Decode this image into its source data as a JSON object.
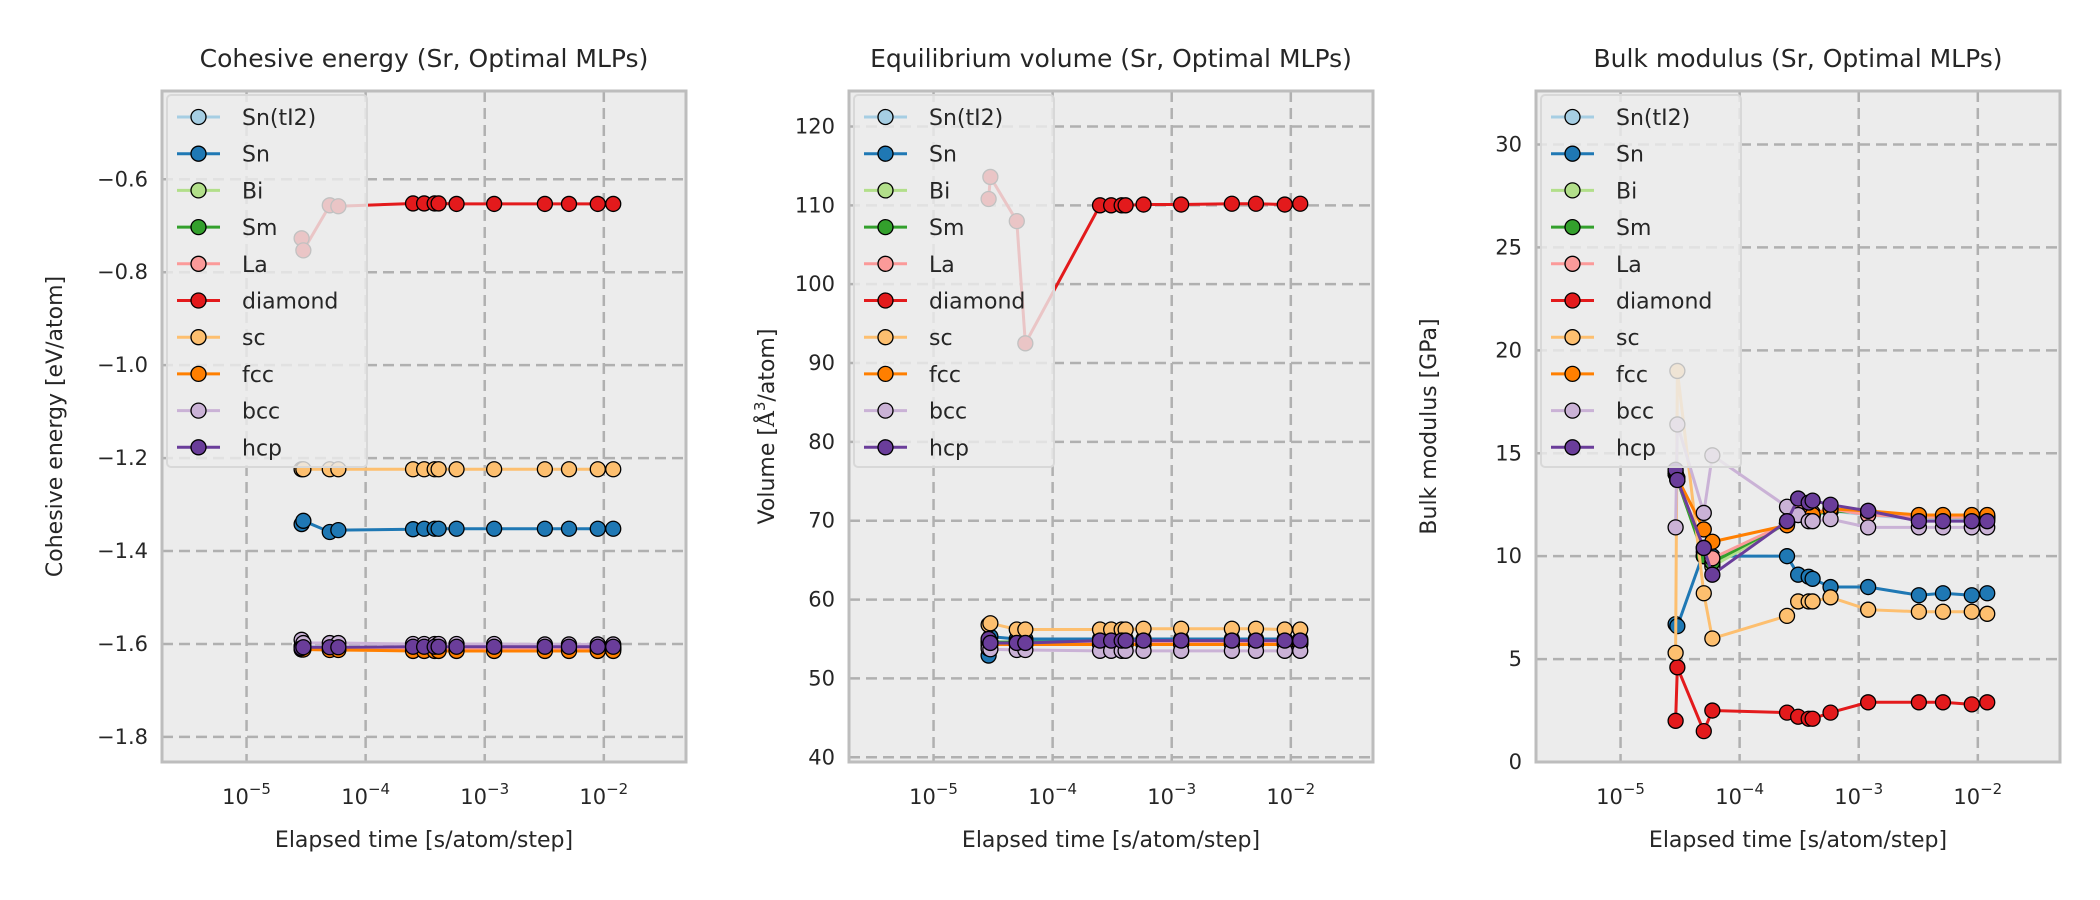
{
  "figure": {
    "legend_location": "upper-left",
    "series_styles": [
      {
        "name": "Sn(tI2)",
        "color": "#a6cee3"
      },
      {
        "name": "Sn",
        "color": "#1f78b4"
      },
      {
        "name": "Bi",
        "color": "#b2df8a"
      },
      {
        "name": "Sm",
        "color": "#33a02c"
      },
      {
        "name": "La",
        "color": "#fb9a99"
      },
      {
        "name": "diamond",
        "color": "#e31a1c"
      },
      {
        "name": "sc",
        "color": "#fdbf6f"
      },
      {
        "name": "fcc",
        "color": "#ff7f00"
      },
      {
        "name": "bcc",
        "color": "#cab2d6"
      },
      {
        "name": "hcp",
        "color": "#6a3d9a"
      }
    ],
    "plot_background": "#ececec",
    "grid_color": "#b0b0b0"
  },
  "chart_data": [
    {
      "type": "line",
      "title": "Cohesive energy (Sr, Optimal MLPs)",
      "xlabel": "Elapsed time [s/atom/step]",
      "ylabel": "Cohesive energy [eV/atom]",
      "xscale": "log",
      "xlim": [
        1.95e-06,
        0.049
      ],
      "ylim": [
        -1.854,
        -0.41
      ],
      "xticks": [
        {
          "value": 1e-05,
          "base": "10",
          "exp": "−5"
        },
        {
          "value": 0.0001,
          "base": "10",
          "exp": "−4"
        },
        {
          "value": 0.001,
          "base": "10",
          "exp": "−3"
        },
        {
          "value": 0.01,
          "base": "10",
          "exp": "−2"
        }
      ],
      "yticks": [
        {
          "value": -1.8,
          "label": "−1.8"
        },
        {
          "value": -1.6,
          "label": "−1.6"
        },
        {
          "value": -1.4,
          "label": "−1.4"
        },
        {
          "value": -1.2,
          "label": "−1.2"
        },
        {
          "value": -1.0,
          "label": "−1.0"
        },
        {
          "value": -0.8,
          "label": "−0.8"
        },
        {
          "value": -0.6,
          "label": "−0.6"
        }
      ],
      "grid": true,
      "legend": "upper-left",
      "x": [
        2.9e-05,
        3e-05,
        5e-05,
        5.9e-05,
        0.00025,
        0.00031,
        0.00038,
        0.00041,
        0.00058,
        0.0012,
        0.0032,
        0.0051,
        0.0089,
        0.012
      ],
      "series": [
        {
          "name": "Sn(tI2)",
          "values": [
            -1.605,
            -1.606,
            -1.607,
            -1.607,
            -1.608,
            -1.608,
            -1.608,
            -1.608,
            -1.608,
            -1.608,
            -1.608,
            -1.608,
            -1.608,
            -1.608
          ]
        },
        {
          "name": "Sn",
          "values": [
            -1.342,
            -1.335,
            -1.359,
            -1.355,
            -1.353,
            -1.352,
            -1.352,
            -1.352,
            -1.352,
            -1.352,
            -1.352,
            -1.352,
            -1.352,
            -1.352
          ]
        },
        {
          "name": "Bi",
          "values": [
            -1.607,
            -1.608,
            -1.609,
            -1.609,
            -1.61,
            -1.61,
            -1.61,
            -1.61,
            -1.61,
            -1.61,
            -1.61,
            -1.61,
            -1.61,
            -1.61
          ]
        },
        {
          "name": "Sm",
          "values": [
            -1.607,
            -1.608,
            -1.609,
            -1.609,
            -1.61,
            -1.61,
            -1.61,
            -1.61,
            -1.61,
            -1.61,
            -1.61,
            -1.61,
            -1.61,
            -1.61
          ]
        },
        {
          "name": "La",
          "values": [
            -1.606,
            -1.607,
            -1.608,
            -1.608,
            -1.609,
            -1.609,
            -1.609,
            -1.609,
            -1.609,
            -1.609,
            -1.609,
            -1.609,
            -1.609,
            -1.609
          ]
        },
        {
          "name": "diamond",
          "values": [
            -0.727,
            -0.753,
            -0.656,
            -0.658,
            -0.652,
            -0.652,
            -0.652,
            -0.652,
            -0.653,
            -0.653,
            -0.653,
            -0.653,
            -0.653,
            -0.653
          ]
        },
        {
          "name": "sc",
          "values": [
            -1.224,
            -1.224,
            -1.224,
            -1.224,
            -1.224,
            -1.224,
            -1.224,
            -1.224,
            -1.224,
            -1.224,
            -1.224,
            -1.224,
            -1.224,
            -1.224
          ]
        },
        {
          "name": "fcc",
          "values": [
            -1.612,
            -1.612,
            -1.613,
            -1.613,
            -1.615,
            -1.615,
            -1.615,
            -1.615,
            -1.615,
            -1.615,
            -1.615,
            -1.615,
            -1.615,
            -1.615
          ]
        },
        {
          "name": "bcc",
          "values": [
            -1.591,
            -1.598,
            -1.598,
            -1.598,
            -1.6,
            -1.6,
            -1.6,
            -1.6,
            -1.6,
            -1.6,
            -1.601,
            -1.601,
            -1.601,
            -1.601
          ]
        },
        {
          "name": "hcp",
          "values": [
            -1.609,
            -1.607,
            -1.607,
            -1.607,
            -1.606,
            -1.606,
            -1.606,
            -1.606,
            -1.606,
            -1.606,
            -1.606,
            -1.606,
            -1.606,
            -1.606
          ]
        }
      ]
    },
    {
      "type": "line",
      "title": "Equilibrium volume (Sr, Optimal MLPs)",
      "xlabel": "Elapsed time [s/atom/step]",
      "ylabel_prefix": "Volume [",
      "ylabel_unit": "Å",
      "ylabel_sup": "3",
      "ylabel_suffix": "/atom]",
      "xscale": "log",
      "xlim": [
        1.95e-06,
        0.049
      ],
      "ylim": [
        39.4,
        124.5
      ],
      "xticks": [
        {
          "value": 1e-05,
          "base": "10",
          "exp": "−5"
        },
        {
          "value": 0.0001,
          "base": "10",
          "exp": "−4"
        },
        {
          "value": 0.001,
          "base": "10",
          "exp": "−3"
        },
        {
          "value": 0.01,
          "base": "10",
          "exp": "−2"
        }
      ],
      "yticks": [
        {
          "value": 40,
          "label": "40"
        },
        {
          "value": 50,
          "label": "50"
        },
        {
          "value": 60,
          "label": "60"
        },
        {
          "value": 70,
          "label": "70"
        },
        {
          "value": 80,
          "label": "80"
        },
        {
          "value": 90,
          "label": "90"
        },
        {
          "value": 100,
          "label": "100"
        },
        {
          "value": 110,
          "label": "110"
        },
        {
          "value": 120,
          "label": "120"
        }
      ],
      "grid": true,
      "legend": "upper-left",
      "x": [
        2.9e-05,
        3e-05,
        5e-05,
        5.9e-05,
        0.00025,
        0.00031,
        0.00038,
        0.00041,
        0.00058,
        0.0012,
        0.0032,
        0.0051,
        0.0089,
        0.012
      ],
      "series": [
        {
          "name": "Sn(tI2)",
          "values": [
            54.6,
            54.5,
            54.7,
            54.7,
            54.8,
            54.8,
            54.8,
            54.8,
            54.8,
            54.8,
            54.8,
            54.8,
            54.8,
            54.8
          ]
        },
        {
          "name": "Sn",
          "values": [
            52.9,
            55.3,
            55.0,
            55.0,
            55.0,
            55.0,
            55.0,
            55.0,
            55.0,
            55.0,
            55.0,
            55.0,
            55.0,
            55.0
          ]
        },
        {
          "name": "Bi",
          "values": [
            54.7,
            54.6,
            54.6,
            54.6,
            54.6,
            54.6,
            54.6,
            54.6,
            54.6,
            54.6,
            54.6,
            54.6,
            54.6,
            54.6
          ]
        },
        {
          "name": "Sm",
          "values": [
            54.7,
            54.6,
            54.6,
            54.6,
            54.6,
            54.6,
            54.6,
            54.6,
            54.6,
            54.6,
            54.6,
            54.6,
            54.6,
            54.6
          ]
        },
        {
          "name": "La",
          "values": [
            54.6,
            54.5,
            54.5,
            54.5,
            54.5,
            54.5,
            54.5,
            54.5,
            54.5,
            54.5,
            54.5,
            54.5,
            54.5,
            54.5
          ]
        },
        {
          "name": "diamond",
          "values": [
            110.8,
            113.6,
            108.0,
            92.5,
            110.0,
            110.0,
            110.0,
            110.0,
            110.1,
            110.1,
            110.2,
            110.2,
            110.1,
            110.2
          ]
        },
        {
          "name": "sc",
          "values": [
            56.8,
            57.0,
            56.2,
            56.2,
            56.2,
            56.2,
            56.2,
            56.2,
            56.3,
            56.3,
            56.3,
            56.3,
            56.2,
            56.2
          ]
        },
        {
          "name": "fcc",
          "values": [
            54.2,
            54.3,
            54.3,
            54.3,
            54.3,
            54.3,
            54.3,
            54.3,
            54.3,
            54.3,
            54.3,
            54.3,
            54.3,
            54.3
          ]
        },
        {
          "name": "bcc",
          "values": [
            53.8,
            53.7,
            53.6,
            53.6,
            53.5,
            53.5,
            53.5,
            53.5,
            53.5,
            53.5,
            53.5,
            53.5,
            53.5,
            53.5
          ]
        },
        {
          "name": "hcp",
          "values": [
            55.0,
            54.5,
            54.5,
            54.5,
            54.8,
            54.8,
            54.8,
            54.8,
            54.8,
            54.8,
            54.8,
            54.8,
            54.8,
            54.8
          ]
        }
      ]
    },
    {
      "type": "line",
      "title": "Bulk modulus (Sr, Optimal MLPs)",
      "xlabel": "Elapsed time [s/atom/step]",
      "ylabel": "Bulk modulus [GPa]",
      "xscale": "log",
      "xlim": [
        1.95e-06,
        0.049
      ],
      "ylim": [
        0,
        32.6
      ],
      "xticks": [
        {
          "value": 1e-05,
          "base": "10",
          "exp": "−5"
        },
        {
          "value": 0.0001,
          "base": "10",
          "exp": "−4"
        },
        {
          "value": 0.001,
          "base": "10",
          "exp": "−3"
        },
        {
          "value": 0.01,
          "base": "10",
          "exp": "−2"
        }
      ],
      "yticks": [
        {
          "value": 0,
          "label": "0"
        },
        {
          "value": 5,
          "label": "5"
        },
        {
          "value": 10,
          "label": "10"
        },
        {
          "value": 15,
          "label": "15"
        },
        {
          "value": 20,
          "label": "20"
        },
        {
          "value": 25,
          "label": "25"
        },
        {
          "value": 30,
          "label": "30"
        }
      ],
      "grid": true,
      "legend": "upper-left",
      "x": [
        2.9e-05,
        3e-05,
        5e-05,
        5.9e-05,
        0.00025,
        0.00031,
        0.00038,
        0.00041,
        0.00058,
        0.0012,
        0.0032,
        0.0051,
        0.0089,
        0.012
      ],
      "series": [
        {
          "name": "Sn(tI2)",
          "values": [
            14.0,
            13.8,
            10.0,
            9.6,
            11.6,
            12.0,
            11.9,
            11.9,
            12.2,
            12.0,
            11.8,
            11.8,
            11.8,
            11.8
          ]
        },
        {
          "name": "Sn",
          "values": [
            6.7,
            6.6,
            10.2,
            10.0,
            10.0,
            9.1,
            9.0,
            8.9,
            8.5,
            8.5,
            8.1,
            8.2,
            8.1,
            8.2
          ]
        },
        {
          "name": "Bi",
          "values": [
            14.0,
            13.7,
            10.0,
            9.5,
            11.6,
            12.1,
            12.0,
            12.0,
            12.2,
            12.1,
            11.9,
            11.9,
            11.9,
            11.9
          ]
        },
        {
          "name": "Sm",
          "values": [
            14.0,
            13.7,
            10.0,
            9.7,
            11.6,
            12.1,
            12.0,
            12.0,
            12.2,
            12.1,
            11.9,
            11.9,
            11.9,
            11.9
          ]
        },
        {
          "name": "La",
          "values": [
            14.0,
            13.7,
            10.4,
            9.9,
            11.6,
            12.2,
            12.1,
            12.1,
            12.3,
            12.0,
            11.9,
            11.9,
            11.9,
            11.9
          ]
        },
        {
          "name": "diamond",
          "values": [
            2.0,
            4.6,
            1.5,
            2.5,
            2.4,
            2.2,
            2.1,
            2.1,
            2.4,
            2.9,
            2.9,
            2.9,
            2.8,
            2.9
          ]
        },
        {
          "name": "sc",
          "values": [
            5.3,
            19.0,
            8.2,
            6.0,
            7.1,
            7.8,
            7.8,
            7.8,
            8.0,
            7.4,
            7.3,
            7.3,
            7.3,
            7.2
          ]
        },
        {
          "name": "fcc",
          "values": [
            14.1,
            13.8,
            11.3,
            10.7,
            11.5,
            12.0,
            12.0,
            12.0,
            12.3,
            12.2,
            12.0,
            12.0,
            12.0,
            12.0
          ]
        },
        {
          "name": "bcc",
          "values": [
            11.4,
            16.4,
            12.1,
            14.9,
            12.4,
            12.0,
            11.7,
            11.7,
            11.8,
            11.4,
            11.4,
            11.4,
            11.4,
            11.4
          ]
        },
        {
          "name": "hcp",
          "values": [
            14.2,
            13.7,
            10.4,
            9.1,
            11.7,
            12.8,
            12.6,
            12.7,
            12.5,
            12.2,
            11.7,
            11.7,
            11.7,
            11.7
          ]
        }
      ]
    }
  ]
}
